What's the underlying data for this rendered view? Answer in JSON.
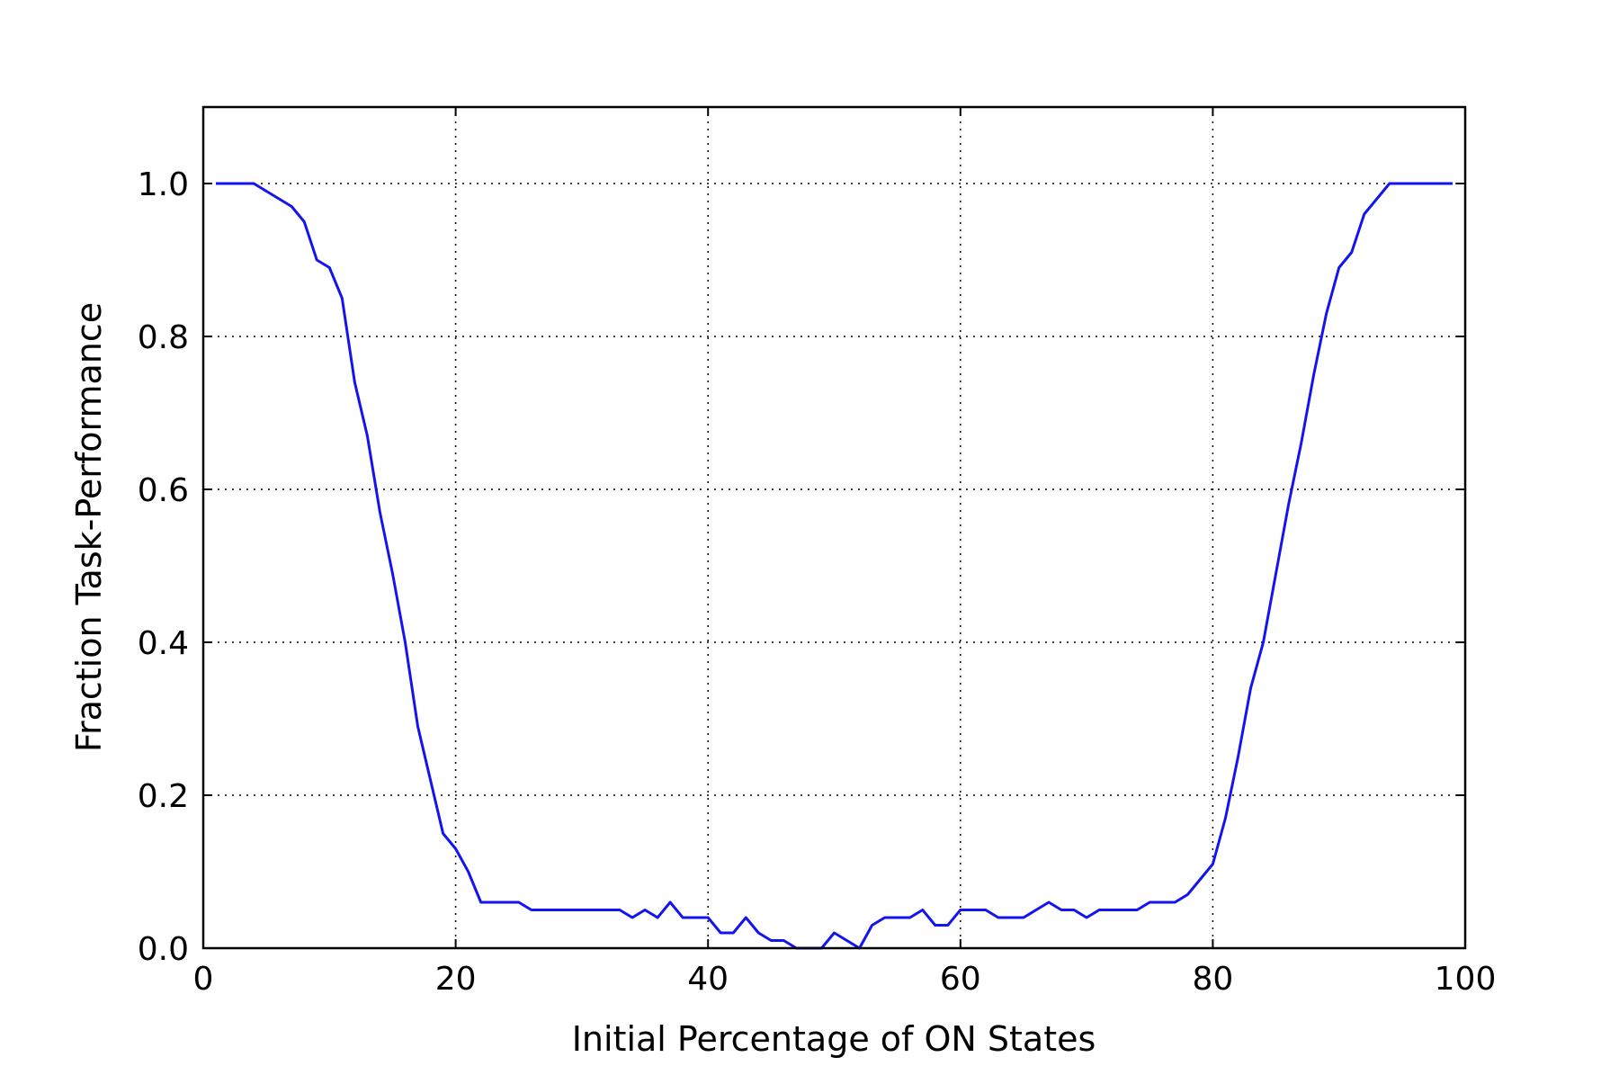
{
  "chart_data": {
    "type": "line",
    "title": "",
    "xlabel": "Initial Percentage of ON States",
    "ylabel": "Fraction Task-Performance",
    "xlim": [
      0,
      100
    ],
    "ylim": [
      0,
      1.1
    ],
    "xticks": [
      0,
      20,
      40,
      60,
      80,
      100
    ],
    "xtick_labels": [
      "0",
      "20",
      "40",
      "60",
      "80",
      "100"
    ],
    "yticks": [
      0,
      0.2,
      0.4,
      0.6,
      0.8,
      1.0
    ],
    "ytick_labels": [
      "0.0",
      "0.2",
      "0.4",
      "0.6",
      "0.8",
      "1.0"
    ],
    "grid": true,
    "line_color": "#1414f0",
    "series": [
      {
        "x": [
          1,
          2,
          3,
          4,
          5,
          6,
          7,
          8,
          9,
          10,
          11,
          12,
          13,
          14,
          15,
          16,
          17,
          18,
          19,
          20,
          21,
          22,
          23,
          24,
          25,
          26,
          27,
          28,
          29,
          30,
          31,
          32,
          33,
          34,
          35,
          36,
          37,
          38,
          39,
          40,
          41,
          42,
          43,
          44,
          45,
          46,
          47,
          48,
          49,
          50,
          51,
          52,
          53,
          54,
          55,
          56,
          57,
          58,
          59,
          60,
          61,
          62,
          63,
          64,
          65,
          66,
          67,
          68,
          69,
          70,
          71,
          72,
          73,
          74,
          75,
          76,
          77,
          78,
          79,
          80,
          81,
          82,
          83,
          84,
          85,
          86,
          87,
          88,
          89,
          90,
          91,
          92,
          93,
          94,
          95,
          96,
          97,
          98,
          99
        ],
        "values": [
          1.0,
          1.0,
          1.0,
          1.0,
          0.99,
          0.98,
          0.97,
          0.95,
          0.9,
          0.89,
          0.85,
          0.74,
          0.67,
          0.57,
          0.49,
          0.4,
          0.29,
          0.22,
          0.15,
          0.13,
          0.1,
          0.06,
          0.06,
          0.06,
          0.06,
          0.05,
          0.05,
          0.05,
          0.05,
          0.05,
          0.05,
          0.05,
          0.05,
          0.04,
          0.05,
          0.04,
          0.06,
          0.04,
          0.04,
          0.04,
          0.02,
          0.02,
          0.04,
          0.02,
          0.01,
          0.01,
          0.0,
          0.0,
          0.0,
          0.02,
          0.01,
          0.0,
          0.03,
          0.04,
          0.04,
          0.04,
          0.05,
          0.03,
          0.03,
          0.05,
          0.05,
          0.05,
          0.04,
          0.04,
          0.04,
          0.05,
          0.06,
          0.05,
          0.05,
          0.04,
          0.05,
          0.05,
          0.05,
          0.05,
          0.06,
          0.06,
          0.06,
          0.07,
          0.09,
          0.11,
          0.17,
          0.25,
          0.34,
          0.4,
          0.49,
          0.58,
          0.66,
          0.75,
          0.83,
          0.89,
          0.91,
          0.96,
          0.98,
          1.0,
          1.0,
          1.0,
          1.0,
          1.0,
          1.0
        ]
      }
    ]
  }
}
